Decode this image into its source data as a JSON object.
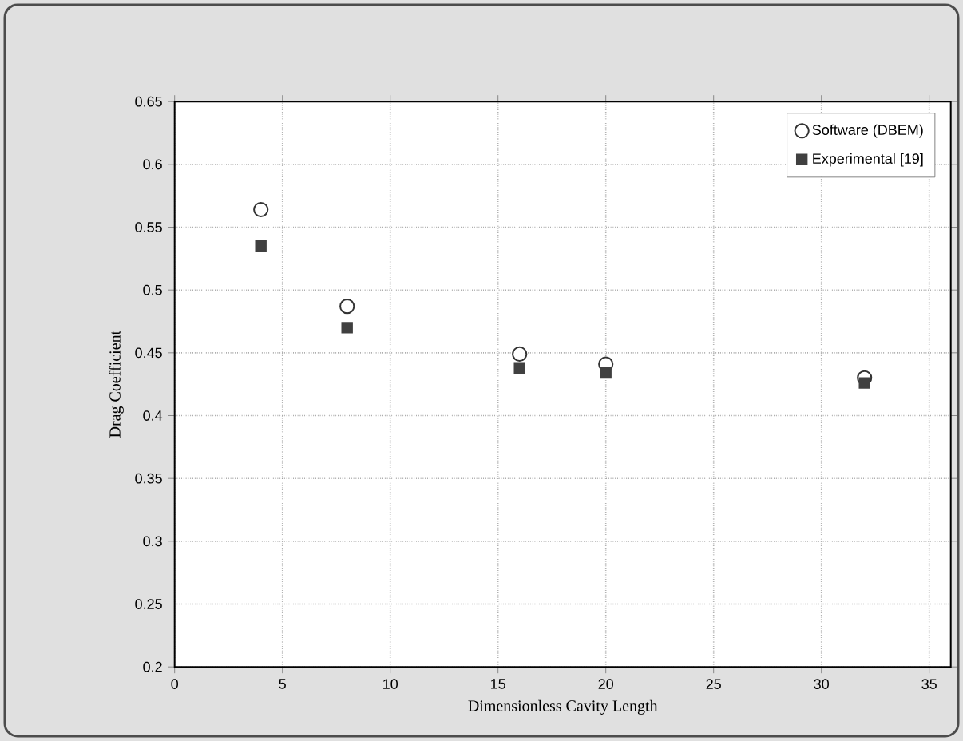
{
  "chart_data": {
    "type": "scatter",
    "xlabel": "Dimensionless Cavity Length",
    "ylabel": "Drag Coefficient",
    "xlim": [
      0,
      36
    ],
    "ylim": [
      0.2,
      0.65
    ],
    "xticks": [
      0,
      5,
      10,
      15,
      20,
      25,
      30,
      35
    ],
    "yticks": [
      0.2,
      0.25,
      0.3,
      0.35,
      0.4,
      0.45,
      0.5,
      0.55,
      0.6,
      0.65
    ],
    "grid": true,
    "legend": "top right",
    "x": [
      4,
      8,
      16,
      20,
      32
    ],
    "series": [
      {
        "name": "Software (DBEM)",
        "color": "#333333",
        "marker": "circle",
        "values": [
          0.564,
          0.487,
          0.449,
          0.441,
          0.43
        ]
      },
      {
        "name": "Experimental [19]",
        "color": "#404040",
        "marker": "square",
        "values": [
          0.535,
          0.47,
          0.438,
          0.434,
          0.426
        ]
      }
    ]
  }
}
